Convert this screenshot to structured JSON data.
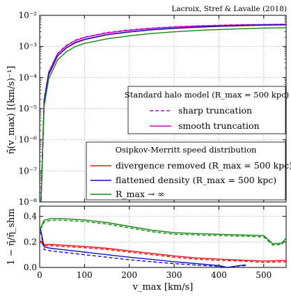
{
  "credit": "Lacroix, Stref & Lavalle (2018)",
  "chart_data": [
    {
      "type": "line",
      "panel": "top",
      "ylabel": "η̄(v_max) [(km/s)⁻¹]",
      "yscale": "log",
      "ylim": [
        1e-08,
        0.01
      ],
      "xlim": [
        0,
        550
      ],
      "ytick_labels": [
        "10⁻⁸",
        "10⁻⁷",
        "10⁻⁶",
        "10⁻⁵",
        "10⁻⁴",
        "10⁻³",
        "10⁻²"
      ],
      "grid": true,
      "legends": [
        {
          "title": "Standard halo model (R_max = 500 kpc)",
          "placement": "center-right",
          "entries": [
            {
              "label": "sharp truncation",
              "color": "#cc00cc",
              "style": "dashed"
            },
            {
              "label": "smooth truncation",
              "color": "#cc00cc",
              "style": "solid"
            }
          ]
        },
        {
          "title": "Osipkov-Merritt speed distribution",
          "placement": "lower-right",
          "entries": [
            {
              "label": "divergence removed (R_max = 500 kpc)",
              "color": "#ee1111",
              "style": "solid"
            },
            {
              "label": "flattened density (R_max = 500 kpc)",
              "color": "#1111cc",
              "style": "solid"
            },
            {
              "label": "R_max → ∞",
              "color": "#118811",
              "style": "solid"
            }
          ]
        }
      ],
      "series": [
        {
          "name": "sharp truncation",
          "color": "#cc00cc",
          "style": "dashed",
          "x": [
            3,
            10,
            20,
            40,
            60,
            80,
            100,
            150,
            200,
            250,
            300,
            350,
            400,
            450,
            500,
            550
          ],
          "y": [
            1e-08,
            2e-05,
            0.00015,
            0.0006,
            0.0011,
            0.0016,
            0.002,
            0.0028,
            0.0034,
            0.0039,
            0.0043,
            0.0046,
            0.0048,
            0.005,
            0.0051,
            0.0052
          ]
        },
        {
          "name": "smooth truncation",
          "color": "#cc00cc",
          "style": "solid",
          "x": [
            3,
            10,
            20,
            40,
            60,
            80,
            100,
            150,
            200,
            250,
            300,
            350,
            400,
            450,
            500,
            550
          ],
          "y": [
            1e-08,
            1.9e-05,
            0.000145,
            0.00058,
            0.00105,
            0.00155,
            0.00195,
            0.0027,
            0.0033,
            0.0038,
            0.0042,
            0.0045,
            0.0047,
            0.0049,
            0.005,
            0.0051
          ]
        },
        {
          "name": "divergence removed (R_max = 500 kpc)",
          "color": "#ee1111",
          "style": "solid",
          "x": [
            3,
            10,
            20,
            40,
            60,
            80,
            100,
            150,
            200,
            250,
            300,
            350,
            400,
            450,
            500,
            550
          ],
          "y": [
            1e-08,
            1.6e-05,
            0.00012,
            0.00049,
            0.0009,
            0.0013,
            0.00165,
            0.00235,
            0.0029,
            0.0034,
            0.0038,
            0.0041,
            0.0044,
            0.0046,
            0.0048,
            0.0049
          ]
        },
        {
          "name": "flattened density (R_max = 500 kpc)",
          "color": "#1111cc",
          "style": "solid",
          "x": [
            3,
            10,
            20,
            40,
            60,
            80,
            100,
            150,
            200,
            250,
            300,
            350,
            400,
            450,
            500,
            550
          ],
          "y": [
            1e-08,
            1.65e-05,
            0.000125,
            0.0005,
            0.00092,
            0.00135,
            0.0017,
            0.0024,
            0.00295,
            0.00345,
            0.00385,
            0.0042,
            0.0045,
            0.00475,
            0.0049,
            0.005
          ]
        },
        {
          "name": "R_max → ∞",
          "color": "#118811",
          "style": "solid",
          "x": [
            3,
            10,
            20,
            40,
            60,
            80,
            100,
            150,
            200,
            250,
            300,
            350,
            400,
            450,
            500,
            550
          ],
          "y": [
            1e-08,
            1.2e-05,
            9e-05,
            0.00037,
            0.00068,
            0.001,
            0.00125,
            0.00175,
            0.0022,
            0.0026,
            0.00295,
            0.00325,
            0.0035,
            0.0037,
            0.0039,
            0.004
          ]
        }
      ]
    },
    {
      "type": "line",
      "panel": "bottom",
      "xlabel": "v_max [km/s]",
      "ylabel": "1 − η̄/η̄_shm",
      "xlim": [
        0,
        550
      ],
      "ylim": [
        0,
        0.48
      ],
      "xtick_labels": [
        "0",
        "100",
        "200",
        "300",
        "400",
        "500"
      ],
      "ytick_labels": [
        "0.0",
        "0.2",
        "0.4"
      ],
      "grid": true,
      "series": [
        {
          "name": "R_max → ∞ (sharp)",
          "color": "#118811",
          "style": "dashed",
          "x": [
            2,
            10,
            25,
            50,
            100,
            150,
            200,
            250,
            300,
            350,
            400,
            450,
            500,
            520,
            540,
            550
          ],
          "y": [
            0.3,
            0.355,
            0.37,
            0.37,
            0.36,
            0.34,
            0.31,
            0.28,
            0.26,
            0.255,
            0.25,
            0.245,
            0.24,
            0.175,
            0.18,
            0.22
          ]
        },
        {
          "name": "R_max → ∞ (smooth)",
          "color": "#118811",
          "style": "solid",
          "x": [
            2,
            10,
            25,
            50,
            100,
            150,
            200,
            250,
            300,
            350,
            400,
            450,
            500,
            520,
            540,
            550
          ],
          "y": [
            0.31,
            0.37,
            0.383,
            0.383,
            0.372,
            0.352,
            0.322,
            0.292,
            0.272,
            0.265,
            0.26,
            0.255,
            0.25,
            0.185,
            0.19,
            0.23
          ]
        },
        {
          "name": "divergence removed (sharp)",
          "color": "#ee1111",
          "style": "dashed",
          "x": [
            2,
            10,
            25,
            50,
            100,
            150,
            200,
            250,
            300,
            350,
            400,
            450,
            500,
            550
          ],
          "y": [
            0.2,
            0.17,
            0.17,
            0.165,
            0.155,
            0.14,
            0.12,
            0.1,
            0.08,
            0.065,
            0.055,
            0.05,
            0.04,
            0.045
          ]
        },
        {
          "name": "divergence removed (smooth)",
          "color": "#ee1111",
          "style": "solid",
          "x": [
            2,
            10,
            25,
            50,
            100,
            150,
            200,
            250,
            300,
            350,
            400,
            450,
            500,
            550
          ],
          "y": [
            0.21,
            0.18,
            0.18,
            0.175,
            0.165,
            0.15,
            0.13,
            0.11,
            0.09,
            0.075,
            0.065,
            0.058,
            0.05,
            0.055
          ]
        },
        {
          "name": "flattened density (sharp)",
          "color": "#1111cc",
          "style": "dashed",
          "x": [
            2,
            10,
            25,
            50,
            100,
            150,
            200,
            250,
            300,
            350,
            400,
            420,
            440,
            460
          ],
          "y": [
            0.28,
            0.14,
            0.13,
            0.12,
            0.1,
            0.08,
            0.06,
            0.045,
            0.03,
            0.018,
            0.008,
            0.0,
            0.01,
            0.015
          ]
        },
        {
          "name": "flattened density (smooth)",
          "color": "#1111cc",
          "style": "solid",
          "x": [
            2,
            10,
            25,
            50,
            100,
            150,
            200,
            250,
            300,
            350,
            400,
            420,
            440,
            460
          ],
          "y": [
            0.3,
            0.16,
            0.15,
            0.14,
            0.12,
            0.1,
            0.08,
            0.063,
            0.045,
            0.03,
            0.015,
            0.0,
            0.012,
            0.02
          ]
        }
      ]
    }
  ]
}
